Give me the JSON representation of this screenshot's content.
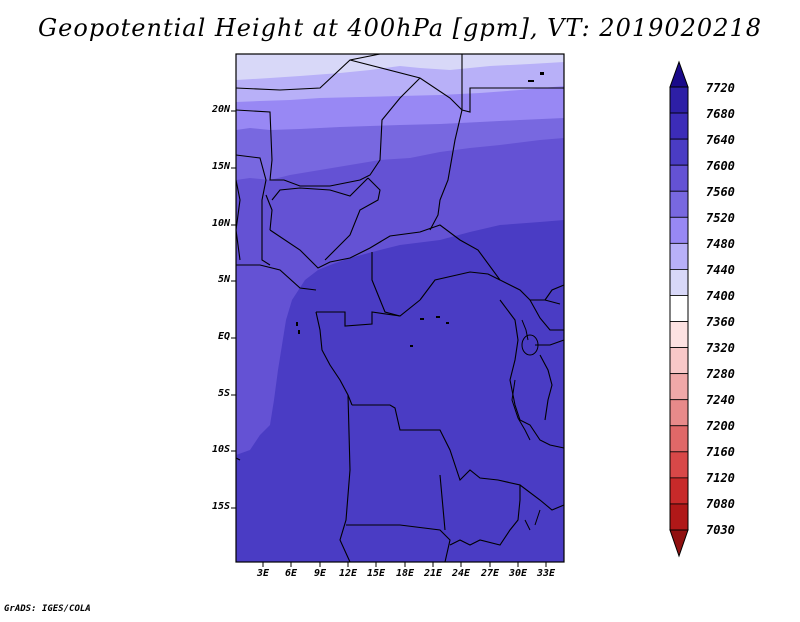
{
  "title": "Geopotential Height at 400hPa [gpm], VT: 2019020218",
  "credit": "GrADS: IGES/COLA",
  "map": {
    "lat_labels": [
      "20N",
      "15N",
      "10N",
      "5N",
      "EQ",
      "5S",
      "10S",
      "15S"
    ],
    "lon_labels": [
      "3E",
      "6E",
      "9E",
      "12E",
      "15E",
      "18E",
      "21E",
      "24E",
      "27E",
      "30E",
      "33E"
    ],
    "bands": [
      {
        "level": 7440,
        "color": "#d8d8f8"
      },
      {
        "level": 7480,
        "color": "#b8b0f8"
      },
      {
        "level": 7520,
        "color": "#9888f4"
      },
      {
        "level": 7560,
        "color": "#7868e0"
      },
      {
        "level": 7600,
        "color": "#6452d4"
      },
      {
        "level": 7640,
        "color": "#4a3cc4"
      }
    ]
  },
  "colorbar": {
    "levels": [
      "7720",
      "7680",
      "7640",
      "7600",
      "7560",
      "7520",
      "7480",
      "7440",
      "7400",
      "7360",
      "7320",
      "7280",
      "7240",
      "7200",
      "7160",
      "7120",
      "7080",
      "7030"
    ],
    "colors": [
      "#1a0a8a",
      "#2d1fa6",
      "#3c2cb8",
      "#4a3cc4",
      "#6452d4",
      "#7868e0",
      "#9888f4",
      "#b8b0f8",
      "#d8d8f8",
      "#ffffff",
      "#fde2e2",
      "#f8c8c8",
      "#f0a8a8",
      "#e88a8a",
      "#e06868",
      "#d84848",
      "#c82a2a",
      "#b01818",
      "#901010"
    ]
  }
}
